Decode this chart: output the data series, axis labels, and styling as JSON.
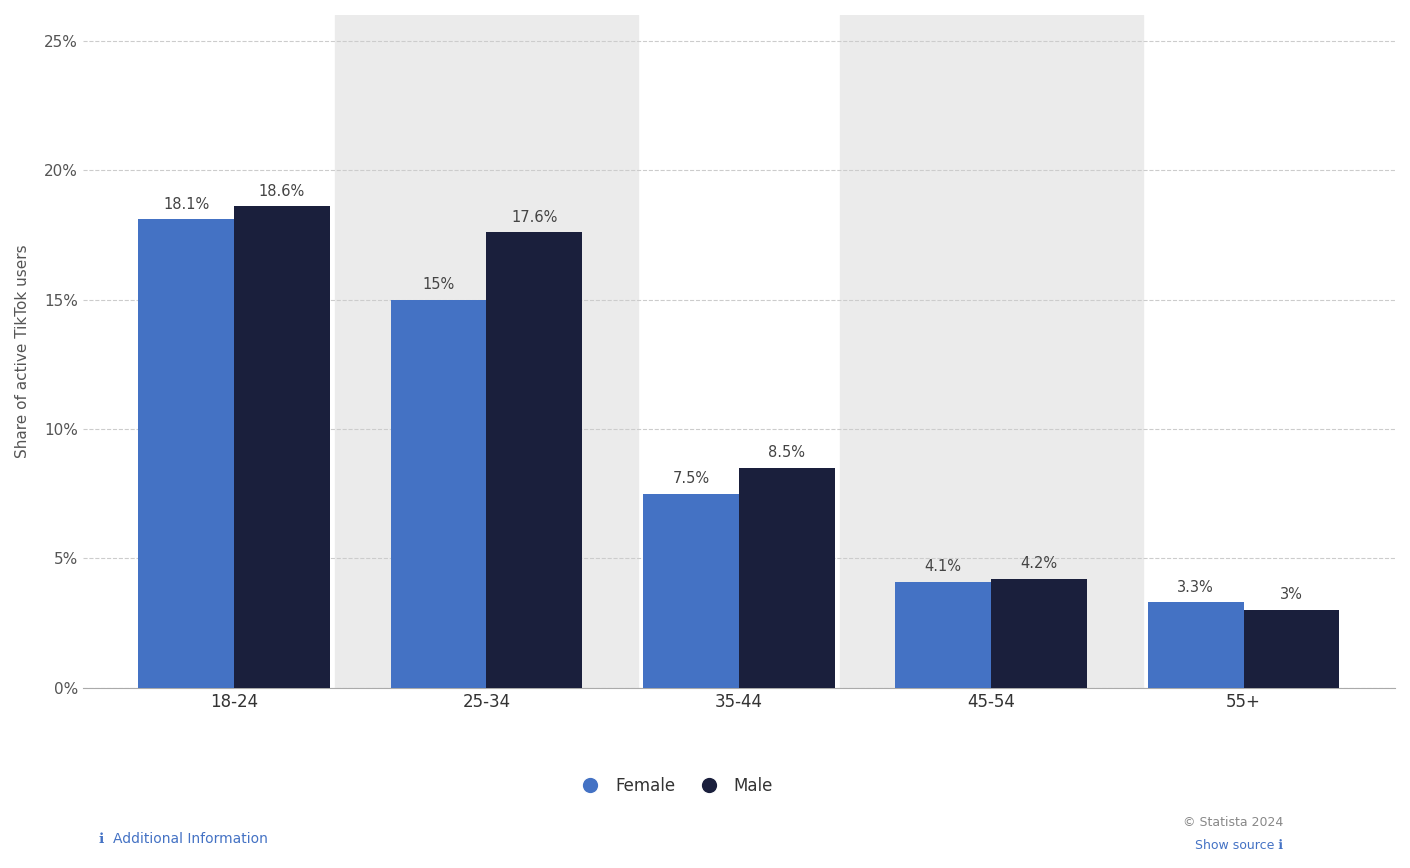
{
  "categories": [
    "18-24",
    "25-34",
    "35-44",
    "45-54",
    "55+"
  ],
  "female_values": [
    18.1,
    15.0,
    7.5,
    4.1,
    3.3
  ],
  "male_values": [
    18.6,
    17.6,
    8.5,
    4.2,
    3.0
  ],
  "female_labels": [
    "18.1%",
    "15%",
    "7.5%",
    "4.1%",
    "3.3%"
  ],
  "male_labels": [
    "18.6%",
    "17.6%",
    "8.5%",
    "4.2%",
    "3%"
  ],
  "female_color": "#4472C4",
  "male_color": "#1A1F3C",
  "ylabel": "Share of active TikTok users",
  "yticks": [
    0,
    5,
    10,
    15,
    20,
    25
  ],
  "ytick_labels": [
    "0%",
    "5%",
    "10%",
    "15%",
    "20%",
    "25%"
  ],
  "ylim": [
    0,
    26
  ],
  "background_color": "#ffffff",
  "plot_bg_color": "#ebebeb",
  "grid_color": "#cccccc",
  "legend_female": "Female",
  "legend_male": "Male",
  "bar_width": 0.38,
  "label_fontsize": 10.5,
  "tick_fontsize": 11,
  "ylabel_fontsize": 11,
  "legend_fontsize": 12,
  "bottom_note_left": "ℹ  Additional Information",
  "bottom_note_right": "© Statista 2024",
  "bottom_note_source": "Show source ℹ",
  "shaded_groups": [
    1,
    3
  ]
}
